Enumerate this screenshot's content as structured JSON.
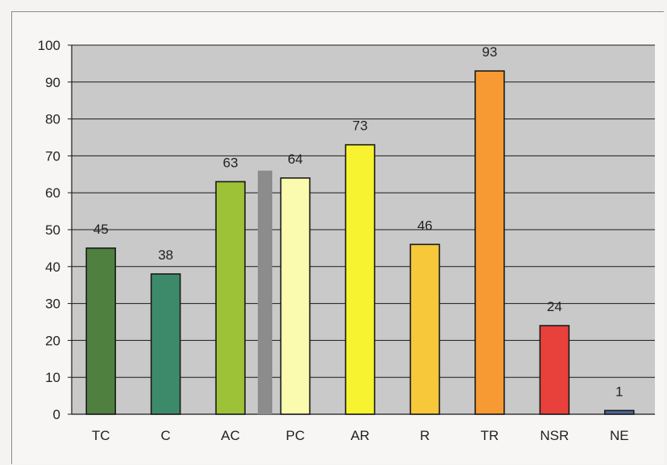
{
  "chart_data": {
    "type": "bar",
    "categories": [
      "TC",
      "C",
      "AC",
      "PC",
      "AR",
      "R",
      "TR",
      "NSR",
      "NE"
    ],
    "values": [
      45,
      38,
      63,
      64,
      73,
      46,
      93,
      24,
      1
    ],
    "data_labels": [
      "45",
      "38",
      "63",
      "64",
      "73",
      "46",
      "93",
      "24",
      "1"
    ],
    "ylim": [
      0,
      100
    ],
    "yticks": [
      0,
      10,
      20,
      30,
      40,
      50,
      60,
      70,
      80,
      90,
      100
    ],
    "grid": true,
    "legend": "none",
    "colors": [
      "#4f8040",
      "#3d8a6a",
      "#9dc238",
      "#fbfbb0",
      "#f7f331",
      "#f7c93a",
      "#f79a33",
      "#e8403a",
      "#4a6a9a"
    ],
    "plot_background": "#c9c9c9",
    "separator_color": "#8c8c8c"
  }
}
